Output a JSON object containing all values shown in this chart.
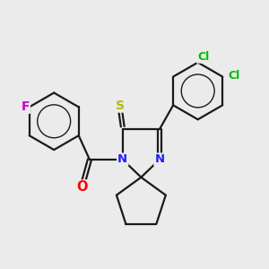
{
  "background_color": "#ebebeb",
  "bond_color": "#1a1a1a",
  "atom_colors": {
    "N": "#2020ff",
    "O": "#ff0000",
    "S": "#b8b800",
    "F": "#cc00cc",
    "Cl": "#00bb00"
  },
  "figsize": [
    3.0,
    3.0
  ],
  "dpi": 100,
  "lw": 1.6
}
